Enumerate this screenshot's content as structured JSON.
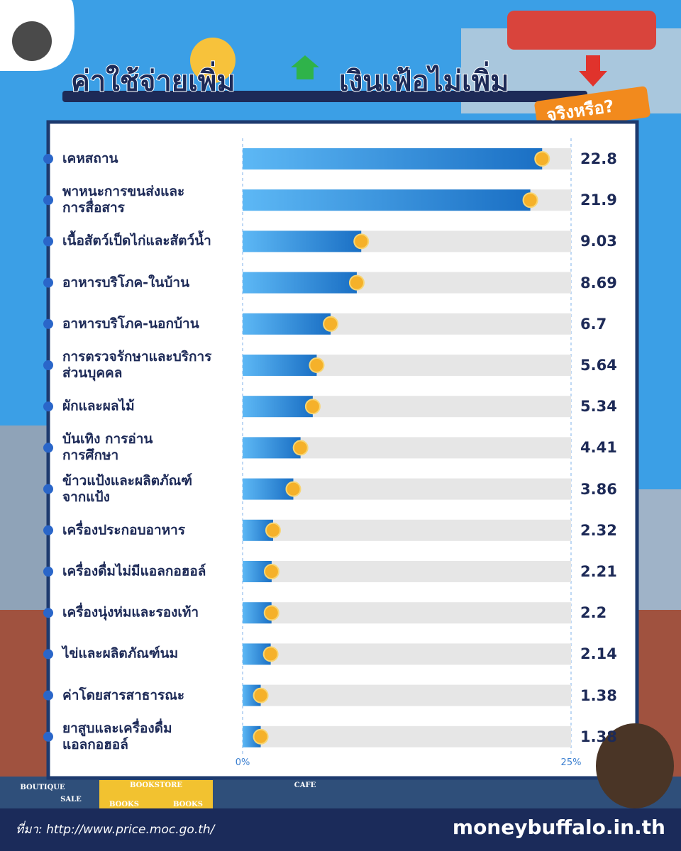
{
  "header": {
    "title_left": "ค่าใช้จ่ายเพิ่ม",
    "title_right": "เงินเฟ้อไม่เพิ่ม",
    "badge": "จริงหรือ?"
  },
  "chart_data": {
    "type": "hbar",
    "categories": [
      "เคหสถาน",
      "พาหนะการขนส่งและ\nการสื่อสาร",
      "เนื้อสัตว์เป็ดไก่และสัตว์น้ำ",
      "อาหารบริโภค-ในบ้าน",
      "อาหารบริโภค-นอกบ้าน",
      "การตรวจรักษาและบริการ\nส่วนบุคคล",
      "ผักและผลไม้",
      "บันเทิง การอ่าน\nการศึกษา",
      "ข้าวแป้งและผลิตภัณฑ์\nจากแป้ง",
      "เครื่องประกอบอาหาร",
      "เครื่องดื่มไม่มีแอลกอฮอล์",
      "เครื่องนุ่งห่มและรองเท้า",
      "ไข่และผลิตภัณฑ์นม",
      "ค่าโดยสารสาธารณะ",
      "ยาสูบและเครื่องดื่ม\nแอลกอฮอล์"
    ],
    "values": [
      22.8,
      21.9,
      9.03,
      8.69,
      6.7,
      5.64,
      5.34,
      4.41,
      3.86,
      2.32,
      2.21,
      2.2,
      2.14,
      1.38,
      1.38
    ],
    "xlim": [
      0,
      25
    ],
    "xticks": [
      {
        "value": 0,
        "label": "0%"
      },
      {
        "value": 25,
        "label": "25%"
      }
    ],
    "color": "#1a6fc4",
    "track_color": "#e6e6e6",
    "marker_color": "#f5b12a"
  },
  "scene": {
    "signs": [
      "BOUTIQUE",
      "SALE",
      "BOOKSTORE",
      "BOOKS",
      "BOOKS",
      "CAFE"
    ]
  },
  "footer": {
    "source": "ที่มา: http://www.price.moc.go.th/",
    "brand": "moneybuffalo.in.th"
  }
}
